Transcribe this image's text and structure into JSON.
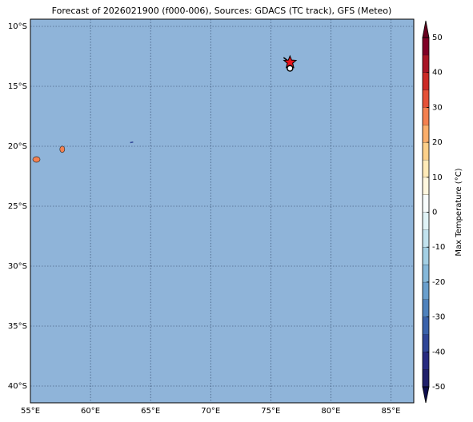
{
  "chart_data": {
    "type": "map",
    "title": "Forecast of 2026021900 (f000-006), Sources: GDACS (TC track), GFS (Meteo)",
    "xlim": [
      55,
      86.9
    ],
    "ylim": [
      -41.4,
      -9.4
    ],
    "xticks": [
      {
        "value": 55,
        "label": "55°E"
      },
      {
        "value": 60,
        "label": "60°E"
      },
      {
        "value": 65,
        "label": "65°E"
      },
      {
        "value": 70,
        "label": "70°E"
      },
      {
        "value": 75,
        "label": "75°E"
      },
      {
        "value": 80,
        "label": "80°E"
      },
      {
        "value": 85,
        "label": "85°E"
      }
    ],
    "yticks": [
      {
        "value": -10,
        "label": "10°S"
      },
      {
        "value": -15,
        "label": "15°S"
      },
      {
        "value": -20,
        "label": "20°S"
      },
      {
        "value": -25,
        "label": "25°S"
      },
      {
        "value": -30,
        "label": "30°S"
      },
      {
        "value": -35,
        "label": "35°S"
      },
      {
        "value": -40,
        "label": "40°S"
      }
    ],
    "grid": true,
    "ocean_color": "#8fb4d9",
    "track": [
      {
        "marker": "star",
        "x": 76.6,
        "y": -13.0,
        "color": "#e8141c"
      },
      {
        "marker": "circle",
        "x": 76.6,
        "y": -13.5,
        "color": "#ffffff"
      }
    ],
    "colorbar": {
      "label": "Max Temperature (°C)",
      "lim": [
        -50,
        50
      ],
      "levels": [
        -50,
        -45,
        -40,
        -35,
        -30,
        -25,
        -20,
        -15,
        -10,
        -5,
        0,
        5,
        10,
        15,
        20,
        25,
        30,
        35,
        40,
        45,
        50
      ],
      "colors": [
        "#1f1f6b",
        "#272a80",
        "#2f4597",
        "#3a62ab",
        "#4f82bd",
        "#6a9fcd",
        "#85b8da",
        "#a3cfe4",
        "#c2e2ee",
        "#e0f3f7",
        "#f7fcfd",
        "#fff7df",
        "#ffeab8",
        "#fdd08a",
        "#fbae6b",
        "#f4804f",
        "#e55137",
        "#cc2a26",
        "#a91526",
        "#800026"
      ],
      "extend_colors": [
        "#0d0d4d",
        "#67001f"
      ],
      "ticks": [
        -50,
        -40,
        -30,
        -20,
        -10,
        0,
        10,
        20,
        30,
        40,
        50
      ]
    }
  }
}
